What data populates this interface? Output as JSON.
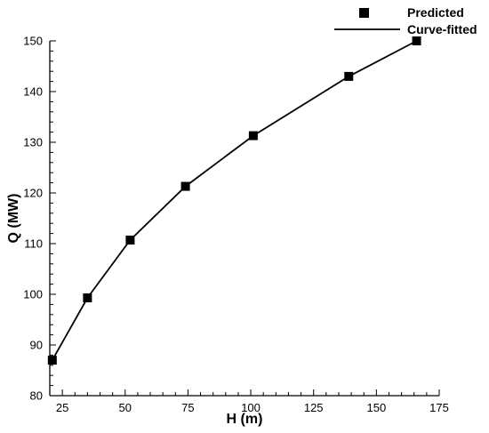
{
  "chart_data": {
    "type": "line",
    "xlabel": "H (m)",
    "ylabel": "Q (MW)",
    "xlim": [
      20,
      175
    ],
    "ylim": [
      80,
      150
    ],
    "xticks": [
      25,
      50,
      75,
      100,
      125,
      150,
      175
    ],
    "yticks": [
      80,
      90,
      100,
      110,
      120,
      130,
      140,
      150
    ],
    "grid": false,
    "legend_position": "top-right",
    "series": [
      {
        "name": "Predicted",
        "style": "square-markers",
        "color": "#000000",
        "x": [
          21,
          35,
          52,
          74,
          101,
          139,
          166
        ],
        "y": [
          87,
          99.3,
          110.7,
          121.3,
          131.3,
          143,
          150
        ]
      },
      {
        "name": "Curve-fitted",
        "style": "line",
        "color": "#000000",
        "x": [
          21,
          35,
          52,
          74,
          101,
          139,
          166
        ],
        "y": [
          87,
          99.3,
          110.7,
          121.3,
          131.3,
          143,
          150
        ]
      }
    ]
  }
}
